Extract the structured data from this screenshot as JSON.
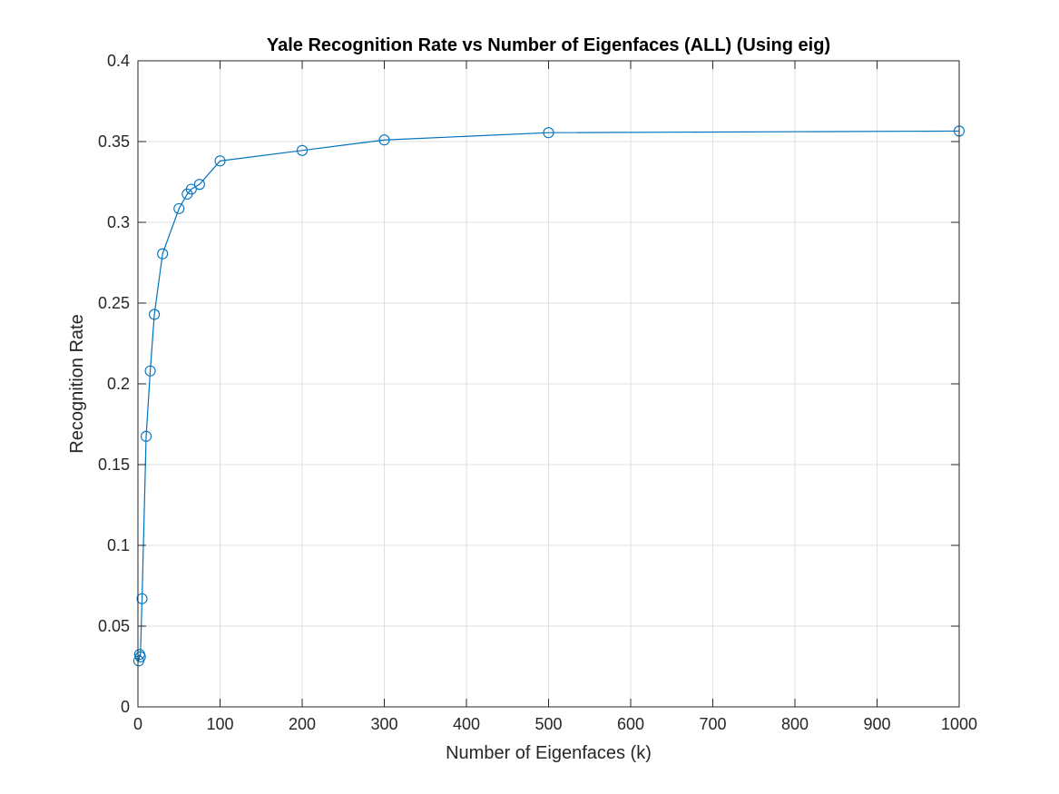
{
  "chart_data": {
    "type": "line",
    "title": "Yale Recognition Rate vs Number of Eigenfaces (ALL) (Using eig)",
    "xlabel": "Number of Eigenfaces (k)",
    "ylabel": "Recognition Rate",
    "xlim": [
      0,
      1000
    ],
    "ylim": [
      0,
      0.4
    ],
    "xticks": [
      0,
      100,
      200,
      300,
      400,
      500,
      600,
      700,
      800,
      900,
      1000
    ],
    "yticks": [
      0,
      0.05,
      0.1,
      0.15,
      0.2,
      0.25,
      0.3,
      0.35,
      0.4
    ],
    "xtick_labels": [
      "0",
      "100",
      "200",
      "300",
      "400",
      "500",
      "600",
      "700",
      "800",
      "900",
      "1000"
    ],
    "ytick_labels": [
      "0",
      "0.05",
      "0.1",
      "0.15",
      "0.2",
      "0.25",
      "0.3",
      "0.35",
      "0.4"
    ],
    "grid": true,
    "marker": "circle",
    "line_color": "#0072bd",
    "series": [
      {
        "x": [
          1,
          2,
          3,
          5,
          10,
          15,
          20,
          30,
          50,
          60,
          65,
          75,
          100,
          200,
          300,
          500,
          1000
        ],
        "y": [
          0.0285,
          0.0325,
          0.031,
          0.067,
          0.1675,
          0.208,
          0.243,
          0.2805,
          0.3085,
          0.3175,
          0.3205,
          0.3235,
          0.338,
          0.3445,
          0.351,
          0.3555,
          0.3565
        ]
      }
    ]
  }
}
